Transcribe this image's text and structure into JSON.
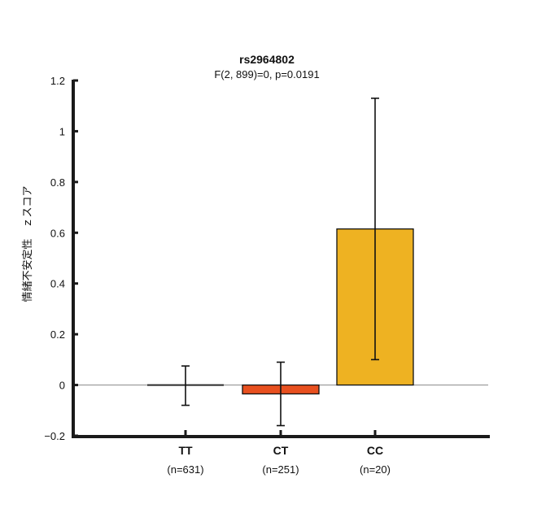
{
  "chart_data": {
    "type": "bar",
    "title": "rs2964802",
    "subtitle": "F(2, 899)=0, p=0.0191",
    "ylabel": "情緒不安定性　ｚスコア",
    "xlabel": "",
    "ylim": [
      -0.2,
      1.2
    ],
    "yticks": [
      -0.2,
      0,
      0.2,
      0.4,
      0.6,
      0.8,
      1,
      1.2
    ],
    "ytick_labels": [
      "−0.2",
      "0",
      "0.2",
      "0.4",
      "0.6",
      "0.8",
      "1",
      "1.2"
    ],
    "categories": [
      "TT",
      "CT",
      "CC"
    ],
    "category_sublabels": [
      "(n=631)",
      "(n=251)",
      "(n=20)"
    ],
    "values": [
      0.0,
      -0.035,
      0.615
    ],
    "error_low": [
      -0.08,
      -0.16,
      0.1
    ],
    "error_high": [
      0.075,
      0.09,
      1.13
    ],
    "colors": [
      "#2a2a2a",
      "#e8501f",
      "#eeb222"
    ],
    "zero_line": true,
    "grid": false,
    "legend": "none"
  }
}
